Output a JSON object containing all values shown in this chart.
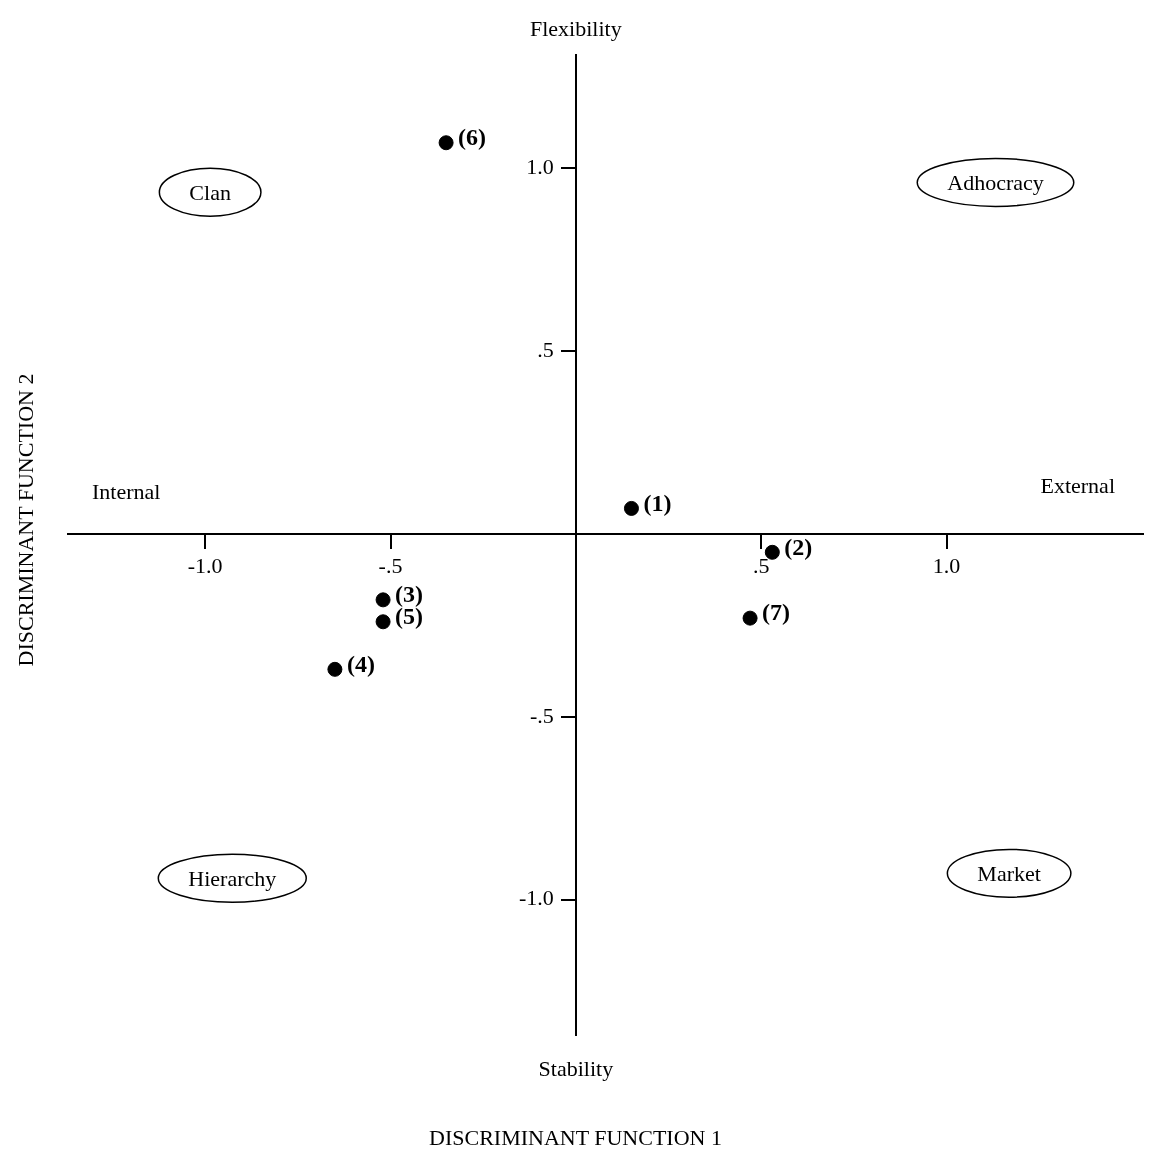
{
  "chart_data": {
    "type": "scatter",
    "xlabel": "DISCRIMINANT FUNCTION 1",
    "ylabel": "DISCRIMINANT FUNCTION 2",
    "series": [
      {
        "name": "(1)",
        "color": "#000000",
        "x": [
          0.15
        ],
        "values": [
          0.07
        ]
      },
      {
        "name": "(2)",
        "color": "#000000",
        "x": [
          0.53
        ],
        "values": [
          -0.05
        ]
      },
      {
        "name": "(3)",
        "color": "#000000",
        "x": [
          -0.52
        ],
        "values": [
          -0.18
        ]
      },
      {
        "name": "(4)",
        "color": "#000000",
        "x": [
          -0.65
        ],
        "values": [
          -0.37
        ]
      },
      {
        "name": "(5)",
        "color": "#000000",
        "x": [
          -0.52
        ],
        "values": [
          -0.24
        ]
      },
      {
        "name": "(6)",
        "color": "#000000",
        "x": [
          -0.35
        ],
        "values": [
          1.07
        ]
      },
      {
        "name": "(7)",
        "color": "#000000",
        "x": [
          0.47
        ],
        "values": [
          -0.23
        ]
      }
    ],
    "marker": "circle",
    "xlim": [
      -1.37,
      1.53
    ],
    "ylim": [
      -1.37,
      1.31
    ],
    "xticks": [
      {
        "value": -1,
        "label": "-1.0"
      },
      {
        "value": -0.5,
        "label": "-.5"
      },
      {
        "value": 0.5,
        "label": ".5"
      },
      {
        "value": 1,
        "label": "1.0"
      }
    ],
    "yticks": [
      {
        "value": -1,
        "label": "-1.0"
      },
      {
        "value": -0.5,
        "label": "-.5"
      },
      {
        "value": 0.5,
        "label": ".5"
      },
      {
        "value": 1,
        "label": "1.0"
      }
    ],
    "grid": false,
    "legend": false,
    "annotations": [
      "Clan",
      "Adhocracy",
      "Hierarchy",
      "Market",
      "Flexibility",
      "Stability",
      "Internal",
      "External"
    ]
  }
}
